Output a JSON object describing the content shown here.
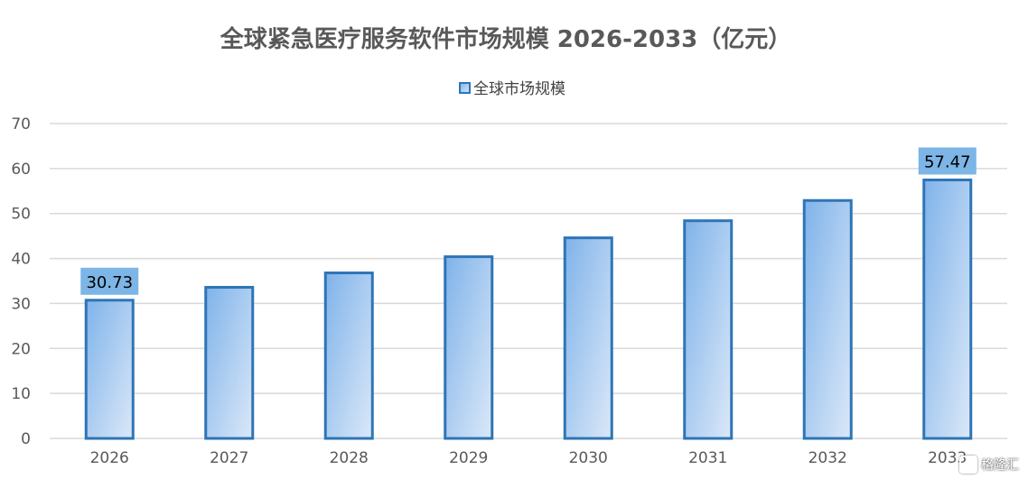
{
  "chart_data": {
    "type": "bar",
    "title": "全球紧急医疗服务软件市场规模 2026-2033（亿元）",
    "categories": [
      "2026",
      "2027",
      "2028",
      "2029",
      "2030",
      "2031",
      "2032",
      "2033"
    ],
    "series": [
      {
        "name": "全球市场规模",
        "values": [
          30.73,
          33.6,
          36.8,
          40.4,
          44.6,
          48.4,
          52.9,
          57.47
        ]
      }
    ],
    "data_labels": [
      {
        "category": "2026",
        "text": "30.73"
      },
      {
        "category": "2033",
        "text": "57.47"
      }
    ],
    "ylim": [
      0,
      70
    ],
    "yticks": [
      "0",
      "10",
      "20",
      "30",
      "40",
      "50",
      "60",
      "70"
    ],
    "grid": true,
    "legend_position": "top",
    "colors": {
      "bar_gradient_start": "#7fb3ea",
      "bar_gradient_end": "#dbe8f8",
      "bar_border": "#2e75b6",
      "label_bg": "#7cb5e6",
      "grid": "#d9d9d9",
      "title": "#595959",
      "tick_text": "#595959"
    }
  },
  "watermark": {
    "text": "格隆汇",
    "icon": "watermark-logo-icon"
  }
}
